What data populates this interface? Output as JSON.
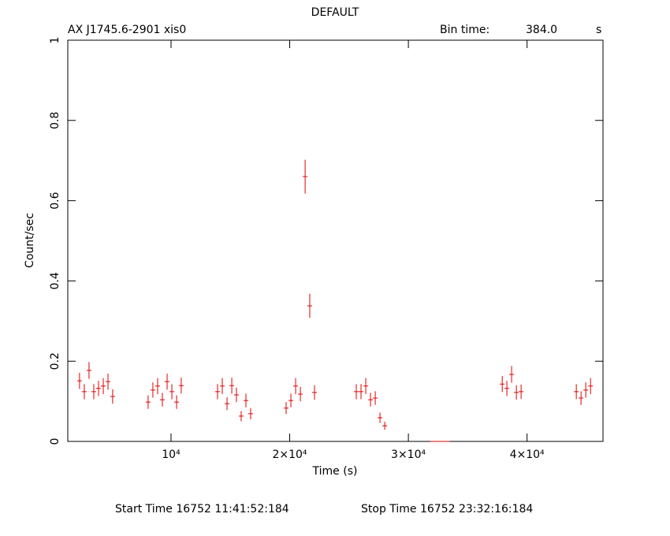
{
  "chart_data": {
    "type": "scatter",
    "title": "DEFAULT",
    "source": "AX J1745.6-2901  xis0",
    "bin_time_label": "Bin time:",
    "bin_time": "384.0",
    "bin_time_unit": "s",
    "xlabel": "Time (s)",
    "ylabel": "Count/sec",
    "start_time": "Start Time 16752 11:41:52:184",
    "stop_time": "Stop Time 16752 23:32:16:184",
    "xlim": [
      1300,
      46400
    ],
    "ylim": [
      0,
      1
    ],
    "xticks": [
      {
        "value": 10000,
        "label": "10⁴"
      },
      {
        "value": 20000,
        "label": "2×10⁴"
      },
      {
        "value": 30000,
        "label": "3×10⁴"
      },
      {
        "value": 40000,
        "label": "4×10⁴"
      }
    ],
    "yticks": [
      0,
      0.2,
      0.4,
      0.6,
      0.8,
      1
    ],
    "series": [
      {
        "color": "#e00000",
        "x": [
          2290,
          2690,
          3090,
          3490,
          3890,
          4290,
          4690,
          5080,
          8070,
          8470,
          8870,
          9270,
          9670,
          10070,
          10470,
          10860,
          13920,
          14320,
          14720,
          15120,
          15510,
          15910,
          16310,
          16710,
          19700,
          20100,
          20500,
          20900,
          21300,
          21690,
          22090,
          25610,
          26010,
          26410,
          26810,
          27210,
          27610,
          28010,
          32060,
          32460,
          32860,
          33260,
          37910,
          38300,
          38700,
          39100,
          39500,
          44150,
          44550,
          44950,
          45350
        ],
        "values": [
          0.151,
          0.124,
          0.177,
          0.124,
          0.132,
          0.138,
          0.149,
          0.112,
          0.098,
          0.128,
          0.138,
          0.104,
          0.149,
          0.124,
          0.098,
          0.139,
          0.124,
          0.138,
          0.094,
          0.139,
          0.116,
          0.063,
          0.102,
          0.069,
          0.083,
          0.102,
          0.138,
          0.118,
          0.66,
          0.338,
          0.122,
          0.124,
          0.124,
          0.138,
          0.104,
          0.108,
          0.059,
          0.039,
          0,
          0,
          0,
          0,
          0.143,
          0.132,
          0.167,
          0.122,
          0.124,
          0.124,
          0.108,
          0.128,
          0.138
        ],
        "errors": [
          0.02,
          0.019,
          0.021,
          0.019,
          0.019,
          0.02,
          0.02,
          0.018,
          0.017,
          0.019,
          0.02,
          0.017,
          0.02,
          0.019,
          0.017,
          0.02,
          0.019,
          0.02,
          0.016,
          0.02,
          0.018,
          0.013,
          0.017,
          0.014,
          0.015,
          0.017,
          0.02,
          0.018,
          0.042,
          0.03,
          0.018,
          0.019,
          0.019,
          0.02,
          0.017,
          0.017,
          0.013,
          0.01,
          0,
          0,
          0,
          0,
          0.02,
          0.019,
          0.021,
          0.018,
          0.018,
          0.019,
          0.017,
          0.019,
          0.02
        ]
      }
    ]
  }
}
